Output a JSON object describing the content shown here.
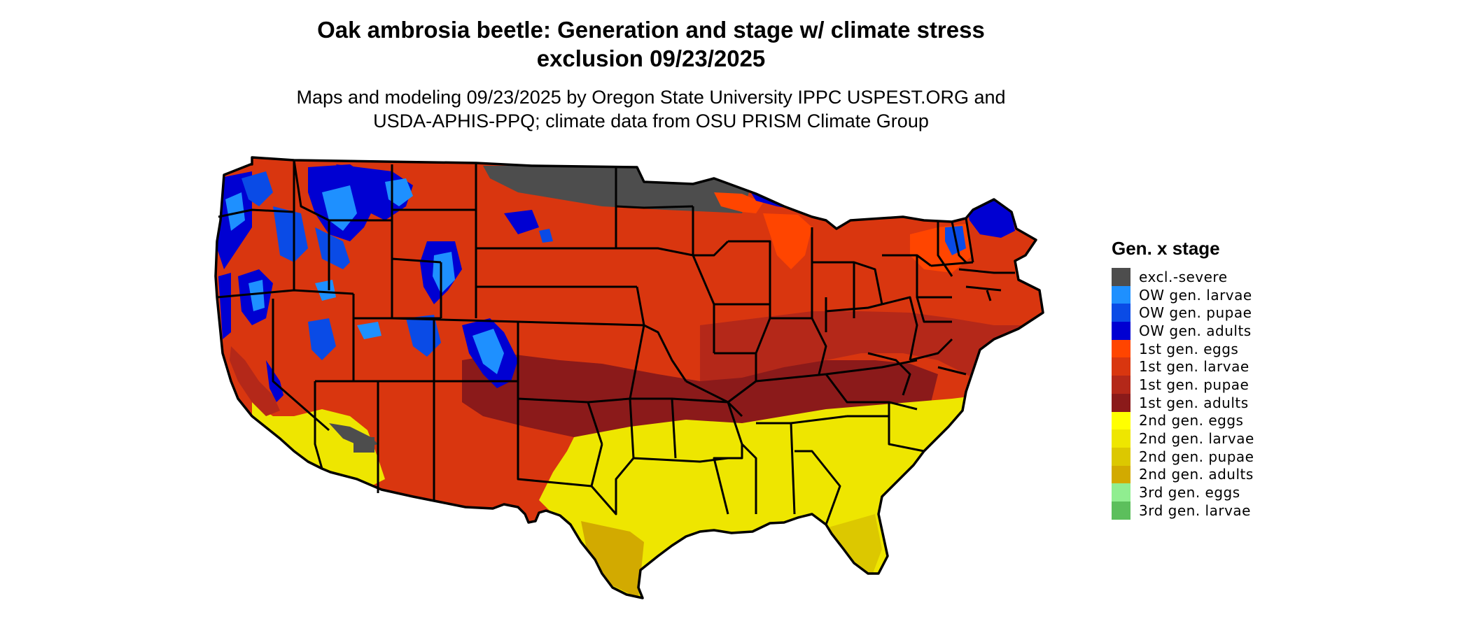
{
  "title_line1": "Oak ambrosia beetle: Generation and stage w/ climate stress",
  "title_line2": "exclusion 09/23/2025",
  "subtitle_line1": "Maps and modeling 09/23/2025 by Oregon State University IPPC USPEST.ORG and",
  "subtitle_line2": "USDA-APHIS-PPQ; climate data from OSU PRISM Climate Group",
  "legend": {
    "title": "Gen. x stage",
    "items": [
      {
        "label": "excl.-severe",
        "color": "#4d4d4d"
      },
      {
        "label": "OW gen. larvae",
        "color": "#1e90ff"
      },
      {
        "label": "OW gen. pupae",
        "color": "#0a4be6"
      },
      {
        "label": "OW gen. adults",
        "color": "#0000d2"
      },
      {
        "label": "1st gen. eggs",
        "color": "#ff4500"
      },
      {
        "label": "1st gen. larvae",
        "color": "#d9360f"
      },
      {
        "label": "1st gen. pupae",
        "color": "#b42819"
      },
      {
        "label": "1st gen. adults",
        "color": "#8b1a1a"
      },
      {
        "label": "2nd gen. eggs",
        "color": "#ffff00"
      },
      {
        "label": "2nd gen. larvae",
        "color": "#eee600"
      },
      {
        "label": "2nd gen. pupae",
        "color": "#dcc800"
      },
      {
        "label": "2nd gen. adults",
        "color": "#d2aa00"
      },
      {
        "label": "3rd gen. eggs",
        "color": "#90ee90"
      },
      {
        "label": "3rd gen. larvae",
        "color": "#5cbf5c"
      }
    ]
  }
}
